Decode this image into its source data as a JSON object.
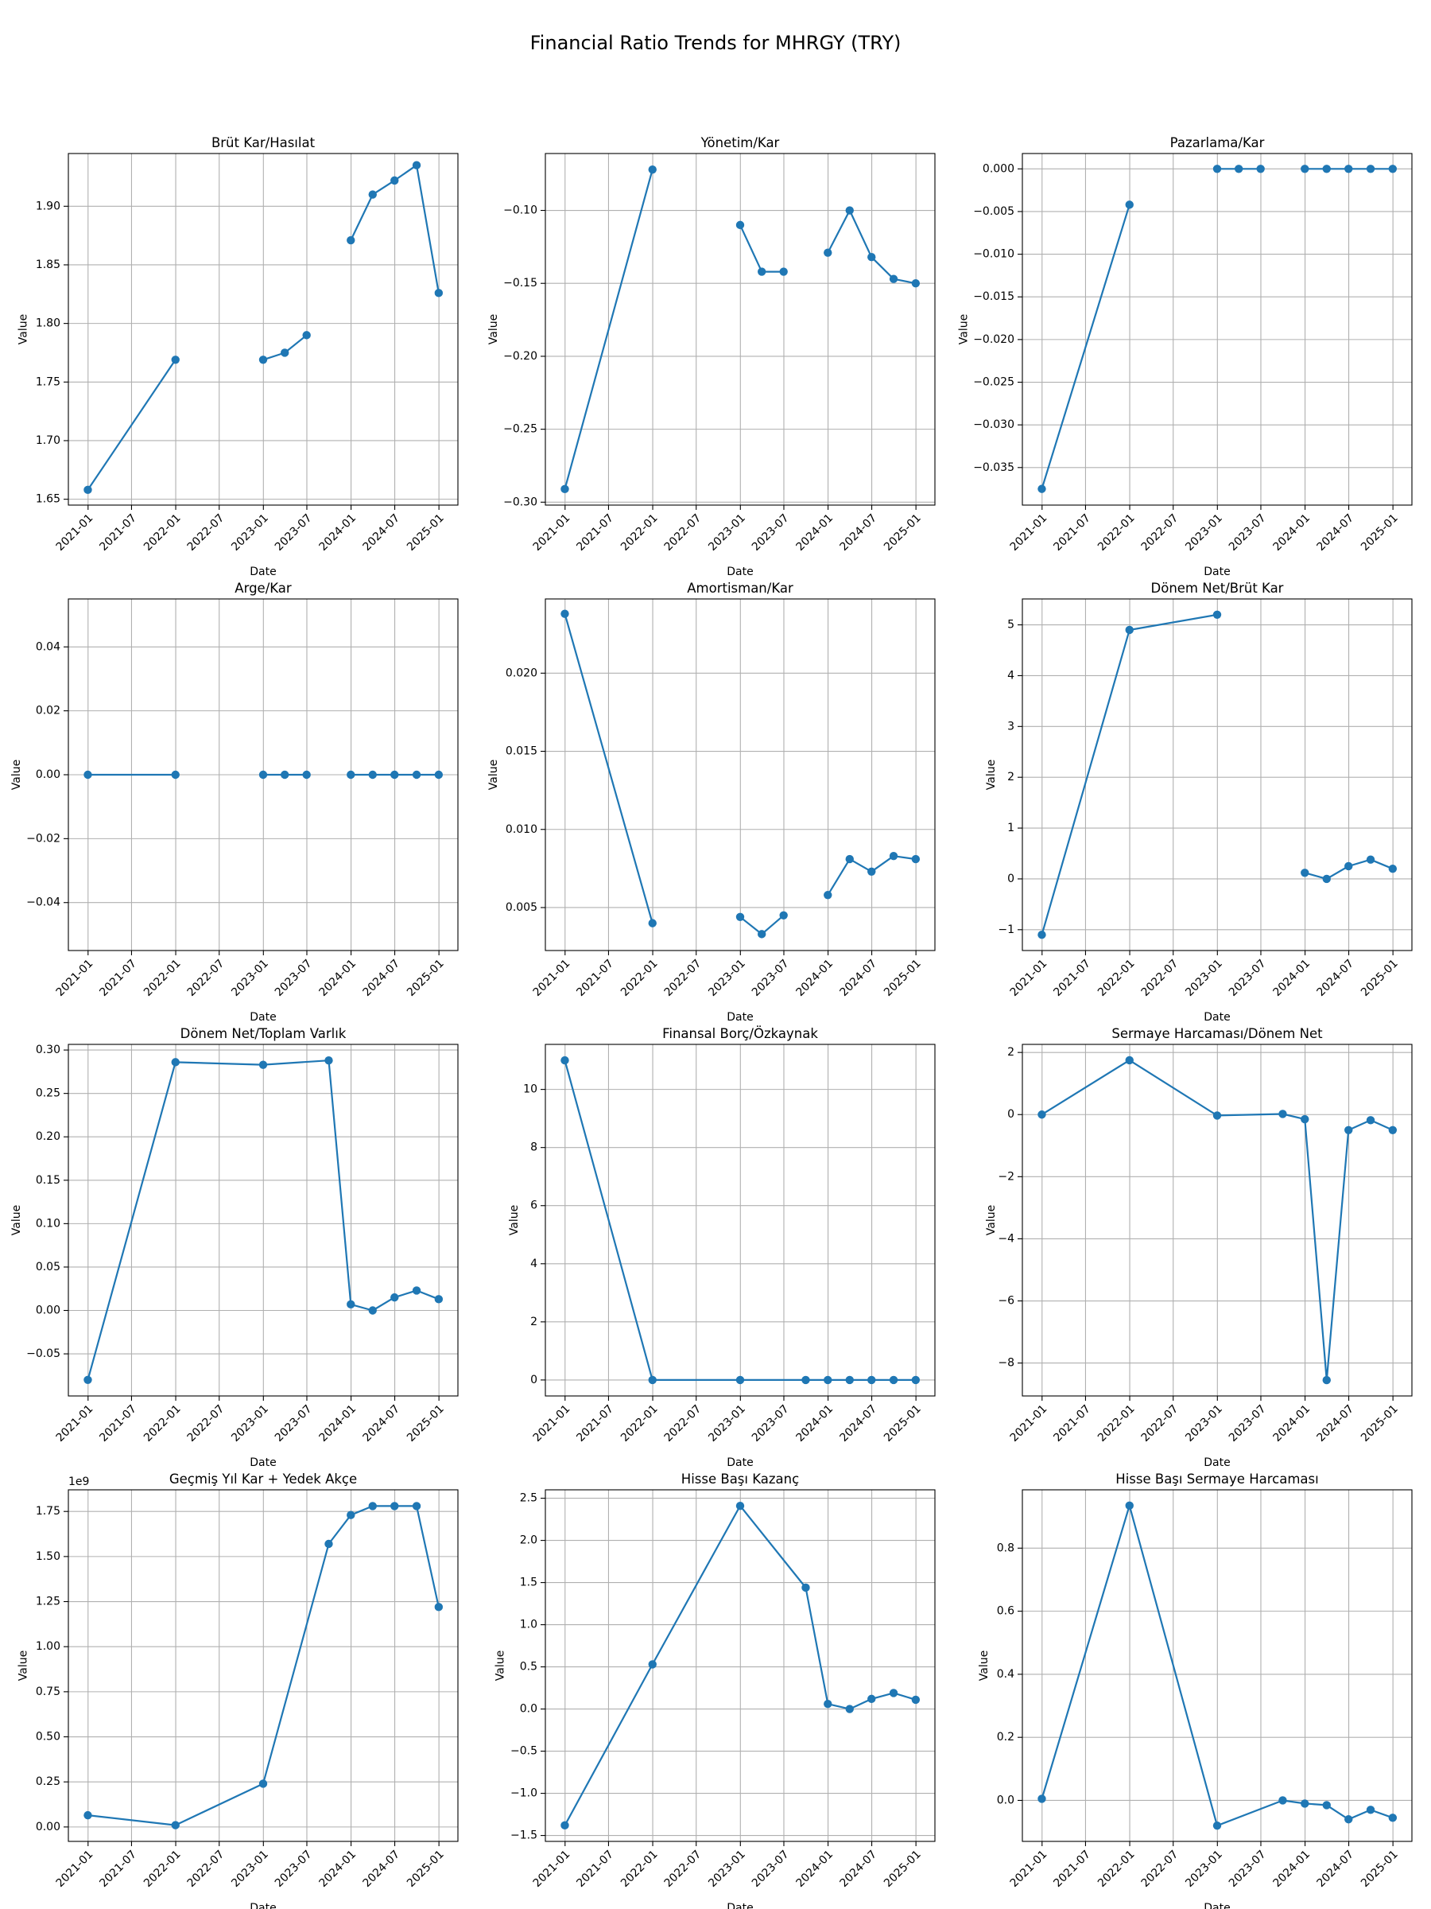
{
  "figure": {
    "title": "Financial Ratio Trends for MHRGY (TRY)",
    "line_color": "#1f77b4",
    "grid_color": "#b0b0b0"
  },
  "chart_data": [
    {
      "type": "line",
      "title": "Brüt Kar/Hasılat",
      "xlabel": "Date",
      "ylabel": "Value",
      "grid": true,
      "ylim": [
        1.645,
        1.945
      ],
      "yticks": [
        1.65,
        1.7,
        1.75,
        1.8,
        1.85,
        1.9
      ],
      "ytick_labels": [
        "1.65",
        "1.70",
        "1.75",
        "1.80",
        "1.85",
        "1.90"
      ],
      "x": [
        "2020-12-31",
        "2021-12-31",
        "2022-12-31",
        "2023-03-31",
        "2023-06-30",
        "2023-12-31",
        "2024-03-31",
        "2024-06-30",
        "2024-09-30",
        "2024-12-31"
      ],
      "segments": [
        [
          0,
          1
        ],
        [
          2,
          3,
          4
        ],
        [
          5,
          6,
          7,
          8,
          9
        ]
      ],
      "values": [
        1.658,
        1.769,
        1.769,
        1.775,
        1.79,
        1.871,
        1.91,
        1.922,
        1.935,
        1.826
      ]
    },
    {
      "type": "line",
      "title": "Yönetim/Kar",
      "xlabel": "Date",
      "ylabel": "Value",
      "grid": true,
      "ylim": [
        -0.302,
        -0.061
      ],
      "yticks": [
        -0.3,
        -0.25,
        -0.2,
        -0.15,
        -0.1
      ],
      "ytick_labels": [
        "−0.30",
        "−0.25",
        "−0.20",
        "−0.15",
        "−0.10"
      ],
      "x": [
        "2020-12-31",
        "2021-12-31",
        "2022-12-31",
        "2023-03-31",
        "2023-06-30",
        "2023-12-31",
        "2024-03-31",
        "2024-06-30",
        "2024-09-30",
        "2024-12-31"
      ],
      "segments": [
        [
          0,
          1
        ],
        [
          2,
          3,
          4
        ],
        [
          5,
          6,
          7,
          8,
          9
        ]
      ],
      "values": [
        -0.291,
        -0.072,
        -0.11,
        -0.142,
        -0.142,
        -0.129,
        -0.1,
        -0.132,
        -0.147,
        -0.15
      ]
    },
    {
      "type": "line",
      "title": "Pazarlama/Kar",
      "xlabel": "Date",
      "ylabel": "Value",
      "grid": true,
      "ylim": [
        -0.0394,
        0.0018
      ],
      "yticks": [
        -0.035,
        -0.03,
        -0.025,
        -0.02,
        -0.015,
        -0.01,
        -0.005,
        0.0
      ],
      "ytick_labels": [
        "−0.035",
        "−0.030",
        "−0.025",
        "−0.020",
        "−0.015",
        "−0.010",
        "−0.005",
        "0.000"
      ],
      "x": [
        "2020-12-31",
        "2021-12-31",
        "2022-12-31",
        "2023-03-31",
        "2023-06-30",
        "2023-12-31",
        "2024-03-31",
        "2024-06-30",
        "2024-09-30",
        "2024-12-31"
      ],
      "segments": [
        [
          0,
          1
        ],
        [
          2,
          3,
          4
        ],
        [
          5,
          6,
          7,
          8,
          9
        ]
      ],
      "values": [
        -0.0375,
        -0.0042,
        0.0,
        0.0,
        0.0,
        0.0,
        0.0,
        0.0,
        0.0,
        0.0
      ]
    },
    {
      "type": "line",
      "title": "Arge/Kar",
      "xlabel": "Date",
      "ylabel": "Value",
      "grid": true,
      "ylim": [
        -0.055,
        0.055
      ],
      "yticks": [
        -0.04,
        -0.02,
        0.0,
        0.02,
        0.04
      ],
      "ytick_labels": [
        "−0.04",
        "−0.02",
        "0.00",
        "0.02",
        "0.04"
      ],
      "x": [
        "2020-12-31",
        "2021-12-31",
        "2022-12-31",
        "2023-03-31",
        "2023-06-30",
        "2023-12-31",
        "2024-03-31",
        "2024-06-30",
        "2024-09-30",
        "2024-12-31"
      ],
      "segments": [
        [
          0,
          1
        ],
        [
          2,
          3,
          4
        ],
        [
          5,
          6,
          7,
          8,
          9
        ]
      ],
      "values": [
        0.0,
        0.0,
        0.0,
        0.0,
        0.0,
        0.0,
        0.0,
        0.0,
        0.0,
        0.0
      ]
    },
    {
      "type": "line",
      "title": "Amortisman/Kar",
      "xlabel": "Date",
      "ylabel": "Value",
      "grid": true,
      "ylim": [
        0.00225,
        0.02475
      ],
      "yticks": [
        0.005,
        0.01,
        0.015,
        0.02
      ],
      "ytick_labels": [
        "0.005",
        "0.010",
        "0.015",
        "0.020"
      ],
      "x": [
        "2020-12-31",
        "2021-12-31",
        "2022-12-31",
        "2023-03-31",
        "2023-06-30",
        "2023-12-31",
        "2024-03-31",
        "2024-06-30",
        "2024-09-30",
        "2024-12-31"
      ],
      "segments": [
        [
          0,
          1
        ],
        [
          2,
          3,
          4
        ],
        [
          5,
          6,
          7,
          8,
          9
        ]
      ],
      "values": [
        0.0238,
        0.004,
        0.0044,
        0.0033,
        0.0045,
        0.0058,
        0.0081,
        0.0073,
        0.0083,
        0.0081
      ]
    },
    {
      "type": "line",
      "title": "Dönem Net/Brüt Kar",
      "xlabel": "Date",
      "ylabel": "Value",
      "grid": true,
      "ylim": [
        -1.41,
        5.51
      ],
      "yticks": [
        -1,
        0,
        1,
        2,
        3,
        4,
        5
      ],
      "ytick_labels": [
        "−1",
        "0",
        "1",
        "2",
        "3",
        "4",
        "5"
      ],
      "x": [
        "2020-12-31",
        "2021-12-31",
        "2022-12-31",
        "2023-12-31",
        "2024-03-31",
        "2024-06-30",
        "2024-09-30",
        "2024-12-31"
      ],
      "segments": [
        [
          0,
          1,
          2
        ],
        [
          3,
          4,
          5,
          6,
          7
        ]
      ],
      "values": [
        -1.1,
        4.9,
        5.2,
        0.12,
        0.0,
        0.25,
        0.38,
        0.2
      ]
    },
    {
      "type": "line",
      "title": "Dönem Net/Toplam Varlık",
      "xlabel": "Date",
      "ylabel": "Value",
      "grid": true,
      "ylim": [
        -0.0985,
        0.3065
      ],
      "yticks": [
        -0.05,
        0.0,
        0.05,
        0.1,
        0.15,
        0.2,
        0.25,
        0.3
      ],
      "ytick_labels": [
        "−0.05",
        "0.00",
        "0.05",
        "0.10",
        "0.15",
        "0.20",
        "0.25",
        "0.30"
      ],
      "x": [
        "2020-12-31",
        "2021-12-31",
        "2022-12-31",
        "2023-09-30",
        "2023-12-31",
        "2024-03-31",
        "2024-06-30",
        "2024-09-30",
        "2024-12-31"
      ],
      "segments": [
        [
          0,
          1,
          2,
          3,
          4,
          5,
          6,
          7,
          8
        ]
      ],
      "values": [
        -0.08,
        0.286,
        0.283,
        0.288,
        0.007,
        0.0,
        0.015,
        0.023,
        0.013
      ]
    },
    {
      "type": "line",
      "title": "Finansal Borç/Özkaynak",
      "xlabel": "Date",
      "ylabel": "Value",
      "grid": true,
      "ylim": [
        -0.55,
        11.55
      ],
      "yticks": [
        0,
        2,
        4,
        6,
        8,
        10
      ],
      "ytick_labels": [
        "0",
        "2",
        "4",
        "6",
        "8",
        "10"
      ],
      "x": [
        "2020-12-31",
        "2021-12-31",
        "2022-12-31",
        "2023-09-30",
        "2023-12-31",
        "2024-03-31",
        "2024-06-30",
        "2024-09-30",
        "2024-12-31"
      ],
      "segments": [
        [
          0,
          1,
          2,
          3,
          4,
          5,
          6,
          7,
          8
        ]
      ],
      "values": [
        11.0,
        0.0,
        0.0,
        0.0,
        0.0,
        0.0,
        0.0,
        0.0,
        0.0
      ]
    },
    {
      "type": "line",
      "title": "Sermaye Harcaması/Dönem Net",
      "xlabel": "Date",
      "ylabel": "Value",
      "grid": true,
      "ylim": [
        -9.06,
        2.26
      ],
      "yticks": [
        -8,
        -6,
        -4,
        -2,
        0,
        2
      ],
      "ytick_labels": [
        "−8",
        "−6",
        "−4",
        "−2",
        "0",
        "2"
      ],
      "x": [
        "2020-12-31",
        "2021-12-31",
        "2022-12-31",
        "2023-09-30",
        "2023-12-31",
        "2024-03-31",
        "2024-06-30",
        "2024-09-30",
        "2024-12-31"
      ],
      "segments": [
        [
          0,
          1,
          2,
          3,
          4,
          5,
          6,
          7,
          8
        ]
      ],
      "values": [
        0.0,
        1.75,
        -0.03,
        0.02,
        -0.15,
        -8.55,
        -0.5,
        -0.18,
        -0.5
      ]
    },
    {
      "type": "line",
      "title": "Geçmiş Yıl Kar + Yedek Akçe",
      "xlabel": "Date",
      "ylabel": "Value",
      "grid": true,
      "offset_label": "1e9",
      "ylim": [
        -0.08,
        1.87
      ],
      "yticks": [
        0.0,
        0.25,
        0.5,
        0.75,
        1.0,
        1.25,
        1.5,
        1.75
      ],
      "ytick_labels": [
        "0.00",
        "0.25",
        "0.50",
        "0.75",
        "1.00",
        "1.25",
        "1.50",
        "1.75"
      ],
      "x": [
        "2020-12-31",
        "2021-12-31",
        "2022-12-31",
        "2023-09-30",
        "2023-12-31",
        "2024-03-31",
        "2024-06-30",
        "2024-09-30",
        "2024-12-31"
      ],
      "segments": [
        [
          0,
          1,
          2,
          3,
          4,
          5,
          6,
          7,
          8
        ]
      ],
      "values": [
        0.065,
        0.01,
        0.24,
        1.57,
        1.73,
        1.78,
        1.78,
        1.78,
        1.22
      ]
    },
    {
      "type": "line",
      "title": "Hisse Başı Kazanç",
      "xlabel": "Date",
      "ylabel": "Value",
      "grid": true,
      "ylim": [
        -1.57,
        2.6
      ],
      "yticks": [
        -1.5,
        -1.0,
        -0.5,
        0.0,
        0.5,
        1.0,
        1.5,
        2.0,
        2.5
      ],
      "ytick_labels": [
        "−1.5",
        "−1.0",
        "−0.5",
        "0.0",
        "0.5",
        "1.0",
        "1.5",
        "2.0",
        "2.5"
      ],
      "x": [
        "2020-12-31",
        "2021-12-31",
        "2022-12-31",
        "2023-09-30",
        "2023-12-31",
        "2024-03-31",
        "2024-06-30",
        "2024-09-30",
        "2024-12-31"
      ],
      "segments": [
        [
          0,
          1,
          2,
          3,
          4,
          5,
          6,
          7,
          8
        ]
      ],
      "values": [
        -1.38,
        0.53,
        2.41,
        1.44,
        0.06,
        0.0,
        0.12,
        0.19,
        0.11
      ]
    },
    {
      "type": "line",
      "title": "Hisse Başı Sermaye Harcaması",
      "xlabel": "Date",
      "ylabel": "Value",
      "grid": true,
      "ylim": [
        -0.13,
        0.985
      ],
      "yticks": [
        0.0,
        0.2,
        0.4,
        0.6,
        0.8
      ],
      "ytick_labels": [
        "0.0",
        "0.2",
        "0.4",
        "0.6",
        "0.8"
      ],
      "x": [
        "2020-12-31",
        "2021-12-31",
        "2022-12-31",
        "2023-09-30",
        "2023-12-31",
        "2024-03-31",
        "2024-06-30",
        "2024-09-30",
        "2024-12-31"
      ],
      "segments": [
        [
          0,
          1,
          2,
          3,
          4,
          5,
          6,
          7,
          8
        ]
      ],
      "values": [
        0.005,
        0.935,
        -0.08,
        0.0,
        -0.01,
        -0.015,
        -0.06,
        -0.03,
        -0.055
      ]
    }
  ],
  "shared_xaxis": {
    "xlim": [
      "2020-10-11",
      "2025-03-21"
    ],
    "ticks": [
      "2021-01-01",
      "2021-07-01",
      "2022-01-01",
      "2022-07-01",
      "2023-01-01",
      "2023-07-01",
      "2024-01-01",
      "2024-07-01",
      "2025-01-01"
    ],
    "tick_labels": [
      "2021-01",
      "2021-07",
      "2022-01",
      "2022-07",
      "2023-01",
      "2023-07",
      "2024-01",
      "2024-07",
      "2025-01"
    ]
  }
}
